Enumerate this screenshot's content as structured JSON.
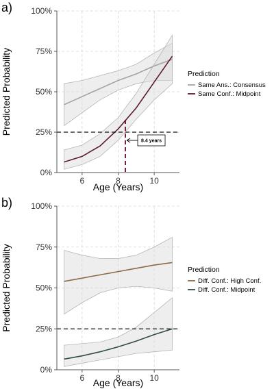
{
  "chart_data": [
    {
      "type": "line",
      "panel_label": "a)",
      "xlabel": "Age (Years)",
      "ylabel": "Predicted Probability",
      "xlim": [
        4.6,
        11.4
      ],
      "ylim": [
        0,
        1
      ],
      "x_ticks": [
        6,
        8,
        10
      ],
      "x_tick_labels": [
        "6",
        "8",
        "10"
      ],
      "y_ticks": [
        0,
        0.25,
        0.5,
        0.75,
        1
      ],
      "y_tick_labels": [
        "0%",
        "25%",
        "50%",
        "75%",
        "100%"
      ],
      "grid": true,
      "legend_title": "Prediction",
      "legend_position": "right",
      "series": [
        {
          "name": "Same Ans.: Consensus",
          "color": "#aaa0a5",
          "x": [
            5,
            6,
            7,
            8,
            9,
            10,
            11
          ],
          "y": [
            0.42,
            0.47,
            0.52,
            0.57,
            0.61,
            0.66,
            0.7
          ],
          "ci_low": [
            0.29,
            0.37,
            0.45,
            0.51,
            0.55,
            0.57,
            0.57
          ],
          "ci_high": [
            0.55,
            0.57,
            0.6,
            0.63,
            0.67,
            0.74,
            0.8
          ]
        },
        {
          "name": "Same Conf.: Midpoint",
          "color": "#5b1a30",
          "x": [
            5,
            6,
            7,
            8,
            9,
            10,
            11
          ],
          "y": [
            0.065,
            0.1,
            0.165,
            0.27,
            0.4,
            0.56,
            0.72
          ],
          "ci_low": [
            0.02,
            0.05,
            0.1,
            0.2,
            0.33,
            0.45,
            0.55
          ],
          "ci_high": [
            0.14,
            0.17,
            0.24,
            0.34,
            0.49,
            0.67,
            0.85
          ]
        }
      ],
      "reference_line": {
        "y": 0.25
      },
      "marker_line": {
        "x": 8.4
      },
      "annotation": {
        "text": "8.4 years"
      }
    },
    {
      "type": "line",
      "panel_label": "b)",
      "xlabel": "Age (Years)",
      "ylabel": "Predicted Probability",
      "xlim": [
        4.6,
        11.4
      ],
      "ylim": [
        0,
        1
      ],
      "x_ticks": [
        6,
        8,
        10
      ],
      "x_tick_labels": [
        "6",
        "8",
        "10"
      ],
      "y_ticks": [
        0,
        0.25,
        0.5,
        0.75,
        1
      ],
      "y_tick_labels": [
        "0%",
        "25%",
        "50%",
        "75%",
        "100%"
      ],
      "grid": true,
      "legend_title": "Prediction",
      "legend_position": "right",
      "series": [
        {
          "name": "Diff. Conf.: High Conf.",
          "color": "#8b6a45",
          "x": [
            5,
            6,
            7,
            8,
            9,
            10,
            11
          ],
          "y": [
            0.54,
            0.56,
            0.58,
            0.6,
            0.62,
            0.64,
            0.655
          ],
          "ci_low": [
            0.34,
            0.41,
            0.47,
            0.5,
            0.51,
            0.5,
            0.48
          ],
          "ci_high": [
            0.73,
            0.7,
            0.68,
            0.68,
            0.7,
            0.75,
            0.81
          ]
        },
        {
          "name": "Diff. Conf.: Midpoint",
          "color": "#2e4a4a",
          "x": [
            5,
            6,
            7,
            8,
            9,
            10,
            11
          ],
          "y": [
            0.065,
            0.085,
            0.11,
            0.14,
            0.175,
            0.215,
            0.25
          ],
          "ci_low": [
            0.02,
            0.04,
            0.06,
            0.08,
            0.1,
            0.11,
            0.12
          ],
          "ci_high": [
            0.15,
            0.16,
            0.17,
            0.2,
            0.26,
            0.35,
            0.44
          ]
        }
      ],
      "reference_line": {
        "y": 0.25
      }
    }
  ]
}
